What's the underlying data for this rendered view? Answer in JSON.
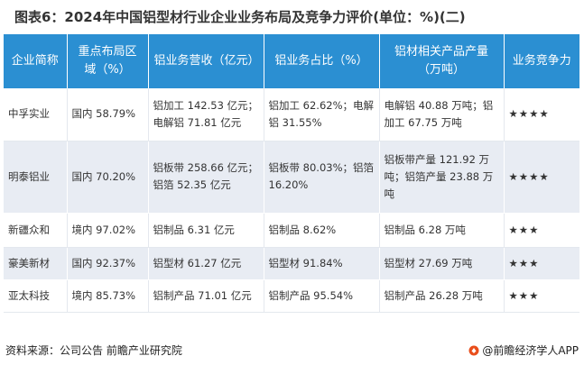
{
  "title": "图表6：2024年中国铝型材行业企业业务布局及竞争力评价(单位：%)(二)",
  "table": {
    "headers": [
      "企业简称",
      "重点布局区域（%）",
      "铝业务营收（亿元）",
      "铝业务占比（%）",
      "铝材相关产品产量（万吨）",
      "业务竞争力"
    ],
    "rows": [
      {
        "company": "中孚实业",
        "region": "国内 58.79%",
        "revenue": "铝加工 142.53 亿元；电解铝 71.81 亿元",
        "share": "铝加工 62.62%；电解铝 31.55%",
        "output": "电解铝 40.88 万吨；铝加工 67.75 万吨",
        "rating": "★★★★"
      },
      {
        "company": "明泰铝业",
        "region": "国内 70.20%",
        "revenue": "铝板带 258.66 亿元；铝箔 52.35 亿元",
        "share": "铝板带 80.03%；铝箔 16.20%",
        "output": "铝板带产量 121.92 万吨；铝箔产量 23.88 万吨",
        "rating": "★★★★"
      },
      {
        "company": "新疆众和",
        "region": "境内 97.02%",
        "revenue": "铝制品 6.31 亿元",
        "share": "铝制品 8.62%",
        "output": "铝制品 6.28 万吨",
        "rating": "★★★"
      },
      {
        "company": "豪美新材",
        "region": "国内 92.37%",
        "revenue": "铝型材 61.27 亿元",
        "share": "铝型材 91.84%",
        "output": "铝型材 27.69 万吨",
        "rating": "★★★"
      },
      {
        "company": "亚太科技",
        "region": "境内 85.73%",
        "revenue": "铝制产品 71.01 亿元",
        "share": "铝制产品 95.54%",
        "output": "铝制产品 26.28 万吨",
        "rating": "★★★"
      }
    ]
  },
  "footer": {
    "source": "资料来源：公司公告 前瞻产业研究院",
    "brand": "@前瞻经济学人APP"
  },
  "colors": {
    "header_bg": "#2b8fd2",
    "header_text": "#ffffff",
    "stripe_bg": "#e8ecf3"
  },
  "icons": {
    "brand_logo": "qianzhan-logo-icon"
  }
}
